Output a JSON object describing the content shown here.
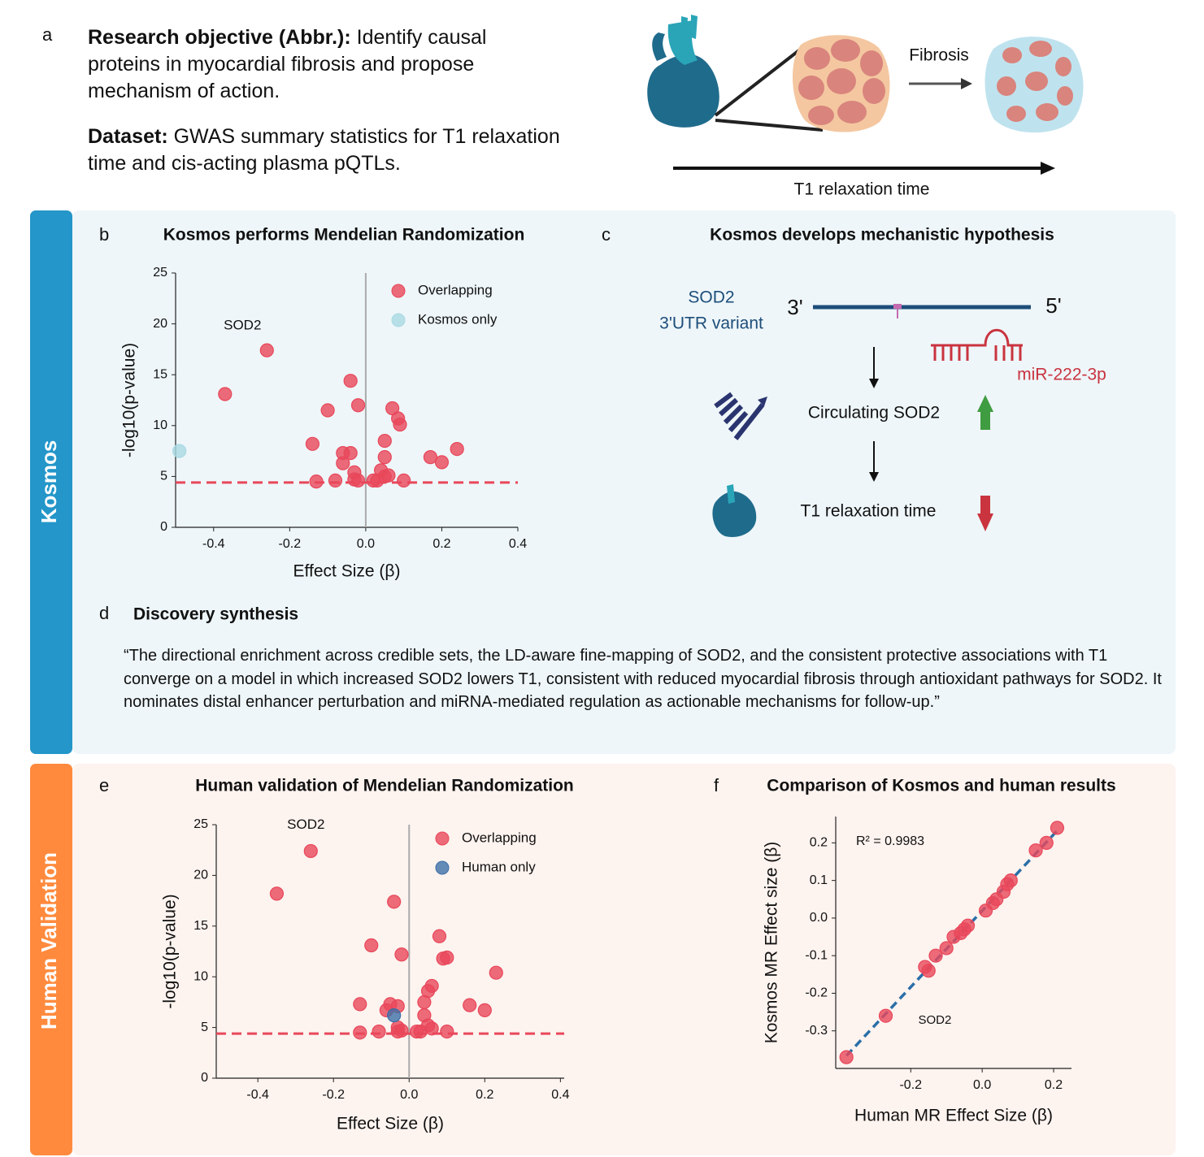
{
  "panel_a": {
    "letter": "a",
    "objective": {
      "label": "Research objective (Abbr.):",
      "text": "Identify causal proteins in myocardial fibrosis and propose mechanism of action."
    },
    "dataset": {
      "label": "Dataset:",
      "text": "GWAS summary statistics for T1 relaxation time and cis-acting plasma pQTLs."
    },
    "illustration": {
      "fibrosis": "Fibrosis",
      "axis": "T1 relaxation time"
    }
  },
  "sections": [
    "Kosmos",
    "Human Validation"
  ],
  "panel_c": {
    "letter": "c",
    "title": "Kosmos develops mechanistic hypothesis",
    "gene": "SOD2",
    "variant": "3'UTR variant",
    "end3": "3'",
    "end5": "5'",
    "mirna": "miR-222-3p",
    "step1": "Circulating SOD2",
    "step2": "T1 relaxation time"
  },
  "panel_d": {
    "letter": "d",
    "title": "Discovery synthesis",
    "quote": "“The directional enrichment across credible sets, the LD-aware fine-mapping of SOD2, and the consistent protective associations with T1 converge on a model in which increased SOD2 lowers T1, consistent with reduced myocardial fibrosis through antioxidant pathways for SOD2. It nominates distal enhancer perturbation and miRNA-mediated regulation as actionable mechanisms for follow-up.”"
  },
  "chart_data": [
    {
      "type": "scatter",
      "letter": "b",
      "title": "Kosmos performs Mendelian Randomization",
      "xlabel": "Effect Size (β)",
      "ylabel": "-log10(p-value)",
      "xlim": [
        -0.5,
        0.4
      ],
      "ylim": [
        0,
        25
      ],
      "xticks": [
        -0.4,
        -0.2,
        {
          "value": 0,
          "label": "0.0"
        },
        0.2,
        0.4
      ],
      "yticks": [
        0,
        5,
        10,
        15,
        20,
        25
      ],
      "zero_line": true,
      "threshold": 4.4,
      "threshold_color": "#e8475a",
      "legend": true,
      "annotation": "SOD2",
      "series": [
        {
          "name": "Overlapping",
          "color": "#e8475a",
          "x": [
            -0.26,
            -0.37,
            -0.04,
            -0.02,
            -0.1,
            0.07,
            0.085,
            0.09,
            -0.14,
            0.05,
            -0.06,
            -0.04,
            -0.06,
            0.05,
            0.17,
            0.2,
            0.24,
            -0.03,
            0.04,
            0.05,
            0.06,
            -0.13,
            -0.08,
            -0.03,
            -0.02,
            0.02,
            0.03,
            0.1
          ],
          "values": [
            17.4,
            13.1,
            14.4,
            12,
            11.5,
            11.7,
            10.7,
            10.1,
            8.2,
            8.5,
            7.3,
            7.3,
            6.3,
            6.9,
            6.9,
            6.4,
            7.7,
            5.4,
            5.6,
            5,
            5.1,
            4.5,
            4.6,
            4.7,
            4.6,
            4.6,
            4.6,
            4.6
          ]
        },
        {
          "name": "Kosmos only",
          "color": "#a9d9e3",
          "x": [
            -0.49
          ],
          "values": [
            7.5
          ]
        }
      ]
    },
    {
      "type": "scatter",
      "letter": "e",
      "title": "Human validation of Mendelian Randomization",
      "xlabel": "Effect Size (β)",
      "ylabel": "-log10(p-value)",
      "xlim": [
        -0.51,
        0.41
      ],
      "ylim": [
        0,
        25
      ],
      "xticks": [
        -0.4,
        -0.2,
        {
          "value": 0,
          "label": "0.0"
        },
        0.2,
        0.4
      ],
      "yticks": [
        0,
        5,
        10,
        15,
        20,
        25
      ],
      "zero_line": true,
      "threshold": 4.4,
      "threshold_color": "#e8475a",
      "legend": true,
      "annotation": "SOD2",
      "series": [
        {
          "name": "Overlapping",
          "color": "#e8475a",
          "x": [
            -0.26,
            -0.35,
            -0.04,
            -0.1,
            -0.02,
            0.08,
            0.09,
            0.1,
            0.23,
            0.06,
            0.05,
            -0.13,
            -0.05,
            -0.03,
            0.04,
            -0.06,
            0.16,
            0.2,
            0.04,
            0.05,
            0.06,
            -0.03,
            -0.13,
            -0.08,
            -0.03,
            -0.02,
            0.02,
            0.03,
            0.1
          ],
          "values": [
            22.4,
            18.2,
            17.4,
            13.1,
            12.2,
            14,
            11.8,
            11.9,
            10.4,
            9.1,
            8.6,
            7.3,
            7.3,
            7.1,
            7.5,
            6.7,
            7.2,
            6.7,
            6.2,
            5.2,
            4.9,
            5,
            4.5,
            4.6,
            4.6,
            4.7,
            4.6,
            4.6,
            4.6
          ]
        },
        {
          "name": "Human only",
          "color": "#3d6fa8",
          "x": [
            -0.04
          ],
          "values": [
            6.2
          ]
        }
      ]
    },
    {
      "type": "scatter",
      "letter": "f",
      "title": "Comparison of Kosmos and human results",
      "xlabel": "Human MR Effect Size (β)",
      "ylabel": "Kosmos MR Effect size (β)",
      "xlim": [
        -0.41,
        0.25
      ],
      "ylim": [
        -0.4,
        0.27
      ],
      "xticks": [
        -0.2,
        {
          "value": 0,
          "label": "0.0"
        },
        0.2
      ],
      "yticks": [
        -0.3,
        -0.2,
        -0.1,
        {
          "value": 0,
          "label": "0.0"
        },
        0.1,
        0.2
      ],
      "fit": true,
      "fit_color": "#2a6fa8",
      "r2_label": "R² = 0.9983",
      "annotation": "SOD2",
      "series": [
        {
          "color": "#e8475a",
          "x": [
            -0.27,
            0.21,
            0.18,
            0.15,
            0.08,
            0.07,
            0.06,
            0.04,
            0.03,
            0.01,
            -0.04,
            -0.05,
            -0.06,
            -0.08,
            -0.1,
            -0.13,
            -0.15,
            -0.16,
            -0.38
          ],
          "values": [
            -0.26,
            0.24,
            0.2,
            0.18,
            0.1,
            0.09,
            0.07,
            0.05,
            0.04,
            0.02,
            -0.02,
            -0.03,
            -0.04,
            -0.05,
            -0.08,
            -0.1,
            -0.14,
            -0.13,
            -0.37
          ]
        }
      ]
    }
  ]
}
